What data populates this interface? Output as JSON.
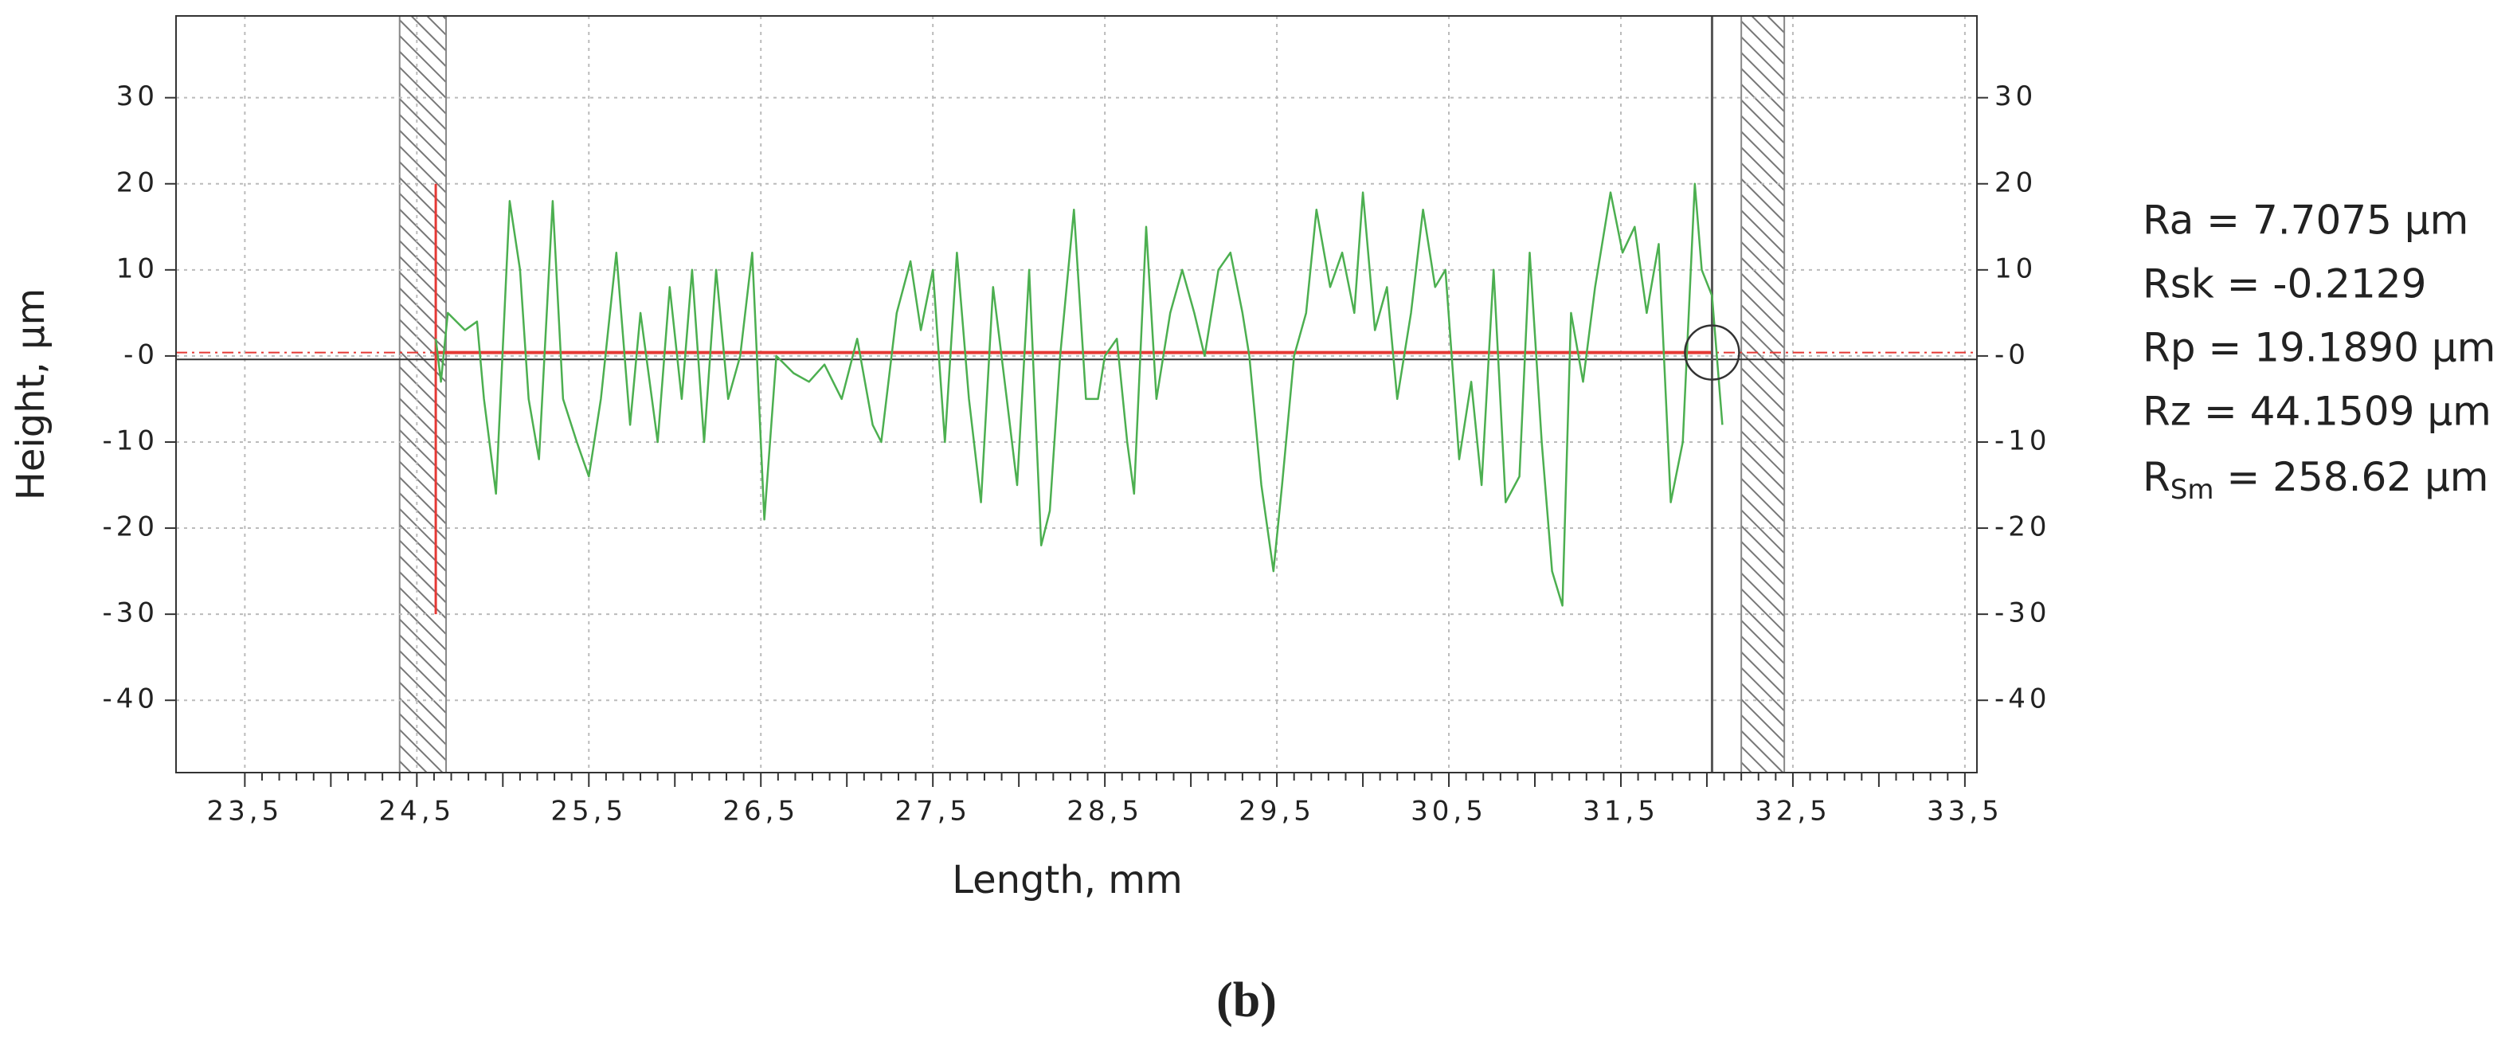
{
  "chart_data": {
    "type": "line",
    "x_label": "Length, mm",
    "y_label": "Height, µm",
    "caption": "(b)",
    "statistics": [
      "Ra = 7.7075 µm",
      "Rsk = -0.2129",
      "Rp = 19.1890 µm",
      "Rz = 44.1509 µm"
    ],
    "statistic_subscripted": {
      "base": "R",
      "sub": "Sm",
      "text": " = 258.62 µm"
    },
    "xlim": [
      23.1,
      33.57
    ],
    "ylim": [
      -48.4,
      39.5
    ],
    "xticks": [
      {
        "value": 23.5,
        "label": "23,5"
      },
      {
        "value": 24.5,
        "label": "24,5"
      },
      {
        "value": 25.5,
        "label": "25,5"
      },
      {
        "value": 26.5,
        "label": "26,5"
      },
      {
        "value": 27.5,
        "label": "27,5"
      },
      {
        "value": 28.5,
        "label": "28,5"
      },
      {
        "value": 29.5,
        "label": "29,5"
      },
      {
        "value": 30.5,
        "label": "30,5"
      },
      {
        "value": 31.5,
        "label": "31,5"
      },
      {
        "value": 32.5,
        "label": "32,5"
      },
      {
        "value": 33.5,
        "label": "33,5"
      }
    ],
    "yticks": [
      30,
      20,
      10,
      {
        "value": 0,
        "label": "-0"
      },
      -10,
      -20,
      -30,
      -40
    ],
    "grid": true,
    "cutoff_regions": [
      [
        24.4,
        24.67
      ],
      [
        32.2,
        32.45
      ]
    ],
    "evaluation_range": [
      24.61,
      32.03
    ],
    "evaluation_marker_heights": [
      [
        20,
        -30
      ]
    ],
    "mean_line": 0.4,
    "reference_line": -0.4,
    "color": "#4caf50",
    "x": [
      24.61,
      24.64,
      24.68,
      24.78,
      24.85,
      24.89,
      24.96,
      25.04,
      25.1,
      25.15,
      25.21,
      25.29,
      25.35,
      25.43,
      25.5,
      25.57,
      25.66,
      25.74,
      25.8,
      25.9,
      25.97,
      26.04,
      26.1,
      26.17,
      26.24,
      26.31,
      26.38,
      26.45,
      26.52,
      26.59,
      26.69,
      26.78,
      26.87,
      26.97,
      27.06,
      27.15,
      27.2,
      27.29,
      27.37,
      27.43,
      27.5,
      27.57,
      27.64,
      27.71,
      27.78,
      27.85,
      27.93,
      27.99,
      28.06,
      28.13,
      28.18,
      28.24,
      28.32,
      28.39,
      28.46,
      28.5,
      28.57,
      28.63,
      28.67,
      28.74,
      28.8,
      28.88,
      28.95,
      29.02,
      29.08,
      29.16,
      29.23,
      29.3,
      29.34,
      29.41,
      29.48,
      29.53,
      29.6,
      29.67,
      29.73,
      29.81,
      29.88,
      29.95,
      30.0,
      30.07,
      30.14,
      30.2,
      30.28,
      30.35,
      30.42,
      30.48,
      30.56,
      30.63,
      30.69,
      30.76,
      30.83,
      30.91,
      30.97,
      31.04,
      31.1,
      31.16,
      31.21,
      31.28,
      31.35,
      31.44,
      31.51,
      31.58,
      31.65,
      31.72,
      31.79,
      31.86,
      31.93,
      31.97,
      32.03,
      32.09
    ],
    "values": [
      2,
      -3,
      5,
      3,
      4,
      -5,
      -16,
      18,
      10,
      -5,
      -12,
      18,
      -5,
      -10,
      -14,
      -5,
      12,
      -8,
      5,
      -10,
      8,
      -5,
      10,
      -10,
      10,
      -5,
      0,
      12,
      -19,
      0,
      -2,
      -3,
      -1,
      -5,
      2,
      -8,
      -10,
      5,
      11,
      3,
      10,
      -10,
      12,
      -5,
      -17,
      8,
      -5,
      -15,
      10,
      -22,
      -18,
      0,
      17,
      -5,
      -5,
      0,
      2,
      -10,
      -16,
      15,
      -5,
      5,
      10,
      5,
      0,
      10,
      12,
      5,
      0,
      -15,
      -25,
      -15,
      0,
      5,
      17,
      8,
      12,
      5,
      19,
      3,
      8,
      -5,
      5,
      17,
      8,
      10,
      -12,
      -3,
      -15,
      10,
      -17,
      -14,
      12,
      -10,
      -25,
      -29,
      5,
      -3,
      8,
      19,
      12,
      15,
      5,
      13,
      -17,
      -10,
      20,
      10,
      7,
      -8
    ]
  }
}
